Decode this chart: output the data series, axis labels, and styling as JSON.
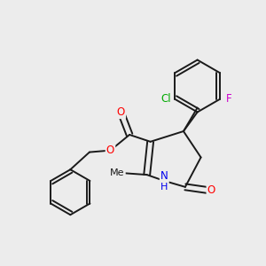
{
  "background_color": "#ececec",
  "bond_color": "#1a1a1a",
  "bond_width": 1.4,
  "atom_colors": {
    "O": "#ff0000",
    "N": "#0000ee",
    "Cl": "#00aa00",
    "F": "#cc00cc",
    "C": "#1a1a1a"
  },
  "font_size": 8.5
}
